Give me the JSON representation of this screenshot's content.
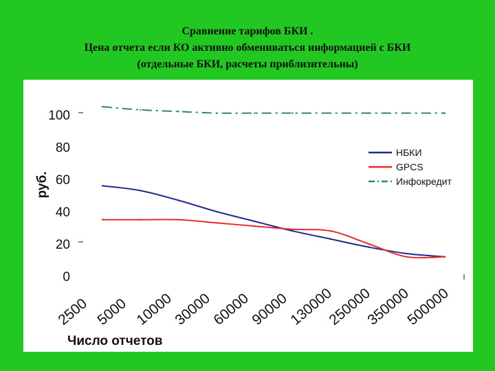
{
  "title_lines": [
    "Сравнение тарифов БКИ .",
    "Цена отчета если КО активно обмениваться информацией с БКИ",
    "(отдельные БКИ, расчеты приблизительны)"
  ],
  "colors": {
    "background": "#22c722",
    "panel": "#ffffff"
  },
  "chart_data": {
    "type": "line",
    "title": "",
    "xlabel": "Число отчетов",
    "ylabel": "руб.",
    "categories": [
      "2500",
      "5000",
      "10000",
      "30000",
      "60000",
      "90000",
      "130000",
      "250000",
      "350000",
      "500000"
    ],
    "ylim": [
      0,
      100
    ],
    "yticks": [
      0,
      20,
      40,
      60,
      80,
      100
    ],
    "grid": false,
    "legend_position": "right",
    "series": [
      {
        "name": "НБКИ",
        "color": "#1f2a8c",
        "dash": "solid",
        "values": [
          56,
          53,
          47,
          40,
          34,
          28,
          23,
          18,
          14,
          12
        ]
      },
      {
        "name": "GPCS",
        "color": "#e52b2b",
        "dash": "solid",
        "values": [
          35,
          35,
          35,
          33,
          31,
          29,
          28,
          20,
          12,
          12
        ]
      },
      {
        "name": "Инфокредит",
        "color": "#2e8b57",
        "dash": "dashdot",
        "values": [
          105,
          103,
          102,
          101,
          101,
          101,
          101,
          101,
          101,
          101
        ]
      }
    ]
  }
}
